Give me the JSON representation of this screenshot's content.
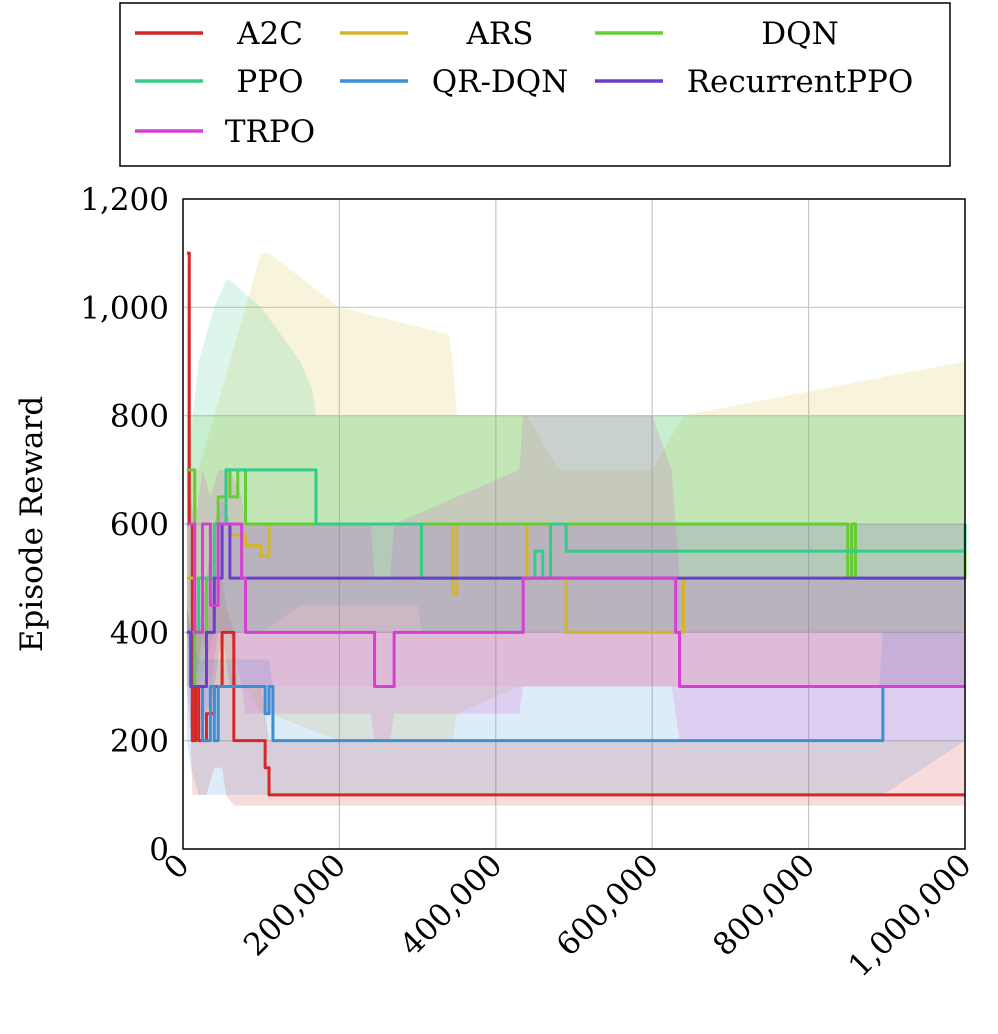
{
  "chart_data": {
    "type": "line",
    "title": "",
    "xlabel": "",
    "ylabel": "Episode Reward",
    "xlim": [
      0,
      1000000
    ],
    "ylim": [
      0,
      1200
    ],
    "x_ticks": [
      0,
      200000,
      400000,
      600000,
      800000,
      1000000
    ],
    "x_tick_labels": [
      "0",
      "200,000",
      "400,000",
      "600,000",
      "800,000",
      "1,000,000"
    ],
    "y_ticks": [
      0,
      200,
      400,
      600,
      800,
      1000,
      1200
    ],
    "y_tick_labels": [
      "0",
      "200",
      "400",
      "600",
      "800",
      "1,000",
      "1,200"
    ],
    "grid": true,
    "legend_placement": "top-outside",
    "series": [
      {
        "name": "A2C",
        "color": "#d62728",
        "x": [
          5000,
          8000,
          12000,
          16000,
          20000,
          30000,
          40000,
          50000,
          55000,
          65000,
          70000,
          100000,
          105000,
          110000,
          1000000
        ],
        "y": [
          1100,
          600,
          200,
          300,
          200,
          250,
          300,
          400,
          400,
          200,
          200,
          200,
          150,
          100,
          100
        ],
        "band_upper": [
          1100,
          800,
          600,
          500,
          400,
          420,
          500,
          500,
          450,
          400,
          300,
          300,
          250,
          200,
          200
        ],
        "band_lower": [
          700,
          300,
          100,
          100,
          100,
          100,
          150,
          150,
          100,
          80,
          80,
          80,
          80,
          80,
          80
        ]
      },
      {
        "name": "ARS",
        "color": "#d4b62a",
        "x": [
          5000,
          20000,
          40000,
          60000,
          80000,
          100000,
          110000,
          200000,
          340000,
          345000,
          350000,
          430000,
          440000,
          480000,
          490000,
          600000,
          640000,
          1000000
        ],
        "y": [
          500,
          500,
          600,
          580,
          560,
          540,
          600,
          600,
          600,
          470,
          600,
          600,
          500,
          500,
          400,
          400,
          500,
          500
        ],
        "band_upper": [
          700,
          700,
          800,
          900,
          1000,
          1100,
          1100,
          1000,
          950,
          900,
          800,
          800,
          800,
          700,
          700,
          700,
          800,
          900
        ],
        "band_lower": [
          300,
          300,
          300,
          300,
          300,
          250,
          250,
          200,
          200,
          200,
          250,
          300,
          300,
          300,
          300,
          300,
          300,
          300
        ]
      },
      {
        "name": "DQN",
        "color": "#66cc33",
        "x": [
          5000,
          15000,
          30000,
          45000,
          55000,
          60000,
          70000,
          80000,
          100000,
          200000,
          400000,
          600000,
          850000,
          855000,
          860000,
          1000000
        ],
        "y": [
          700,
          300,
          500,
          650,
          700,
          650,
          700,
          600,
          600,
          600,
          600,
          600,
          500,
          600,
          500,
          600
        ],
        "band_upper": [
          800,
          800,
          800,
          800,
          800,
          800,
          800,
          800,
          800,
          800,
          800,
          800,
          800,
          800,
          800,
          800
        ],
        "band_lower": [
          400,
          300,
          400,
          400,
          400,
          400,
          400,
          400,
          400,
          400,
          400,
          400,
          400,
          400,
          400,
          400
        ]
      },
      {
        "name": "PPO",
        "color": "#33cc88",
        "x": [
          5000,
          20000,
          40000,
          55000,
          60000,
          100000,
          150000,
          165000,
          170000,
          300000,
          305000,
          310000,
          440000,
          450000,
          460000,
          470000,
          480000,
          490000,
          1000000
        ],
        "y": [
          400,
          500,
          600,
          700,
          700,
          700,
          700,
          700,
          600,
          600,
          500,
          500,
          500,
          550,
          500,
          600,
          600,
          550,
          600
        ],
        "band_upper": [
          700,
          900,
          1000,
          1050,
          1050,
          1000,
          900,
          850,
          800,
          800,
          800,
          800,
          800,
          800,
          800,
          800,
          800,
          800,
          800
        ],
        "band_lower": [
          300,
          300,
          400,
          400,
          400,
          400,
          450,
          450,
          450,
          450,
          400,
          400,
          400,
          400,
          400,
          400,
          400,
          400,
          400
        ]
      },
      {
        "name": "QR-DQN",
        "color": "#3b8fd4",
        "x": [
          5000,
          10000,
          20000,
          25000,
          35000,
          40000,
          45000,
          70000,
          100000,
          105000,
          110000,
          115000,
          200000,
          400000,
          600000,
          890000,
          895000,
          1000000
        ],
        "y": [
          400,
          300,
          300,
          200,
          300,
          200,
          300,
          300,
          300,
          250,
          300,
          200,
          200,
          200,
          200,
          200,
          300,
          300
        ],
        "band_upper": [
          450,
          400,
          350,
          350,
          350,
          350,
          350,
          350,
          350,
          350,
          350,
          300,
          300,
          300,
          300,
          300,
          400,
          400
        ],
        "band_lower": [
          200,
          150,
          100,
          100,
          100,
          100,
          100,
          100,
          100,
          100,
          100,
          100,
          100,
          100,
          100,
          100,
          100,
          200
        ]
      },
      {
        "name": "RecurrentPPO",
        "color": "#6a3fcf",
        "x": [
          5000,
          10000,
          20000,
          30000,
          40000,
          50000,
          60000,
          70000,
          100000,
          400000,
          600000,
          1000000
        ],
        "y": [
          400,
          300,
          300,
          400,
          500,
          600,
          500,
          500,
          500,
          500,
          500,
          500
        ],
        "band_upper": [
          450,
          400,
          400,
          500,
          600,
          650,
          600,
          600,
          600,
          600,
          600,
          600
        ],
        "band_lower": [
          300,
          200,
          200,
          250,
          300,
          400,
          300,
          300,
          300,
          300,
          300,
          300
        ]
      },
      {
        "name": "TRPO",
        "color": "#d63fd6",
        "x": [
          5000,
          15000,
          25000,
          35000,
          45000,
          60000,
          75000,
          80000,
          100000,
          240000,
          245000,
          265000,
          270000,
          430000,
          435000,
          600000,
          625000,
          630000,
          635000,
          1000000
        ],
        "y": [
          600,
          400,
          600,
          450,
          600,
          600,
          500,
          400,
          400,
          400,
          300,
          300,
          400,
          400,
          500,
          500,
          500,
          400,
          300,
          300
        ],
        "band_upper": [
          700,
          600,
          700,
          650,
          700,
          700,
          650,
          600,
          600,
          600,
          500,
          500,
          600,
          700,
          800,
          800,
          700,
          600,
          500,
          500
        ],
        "band_lower": [
          400,
          300,
          400,
          300,
          400,
          400,
          300,
          250,
          250,
          250,
          200,
          200,
          250,
          250,
          300,
          300,
          300,
          250,
          200,
          200
        ]
      }
    ]
  }
}
